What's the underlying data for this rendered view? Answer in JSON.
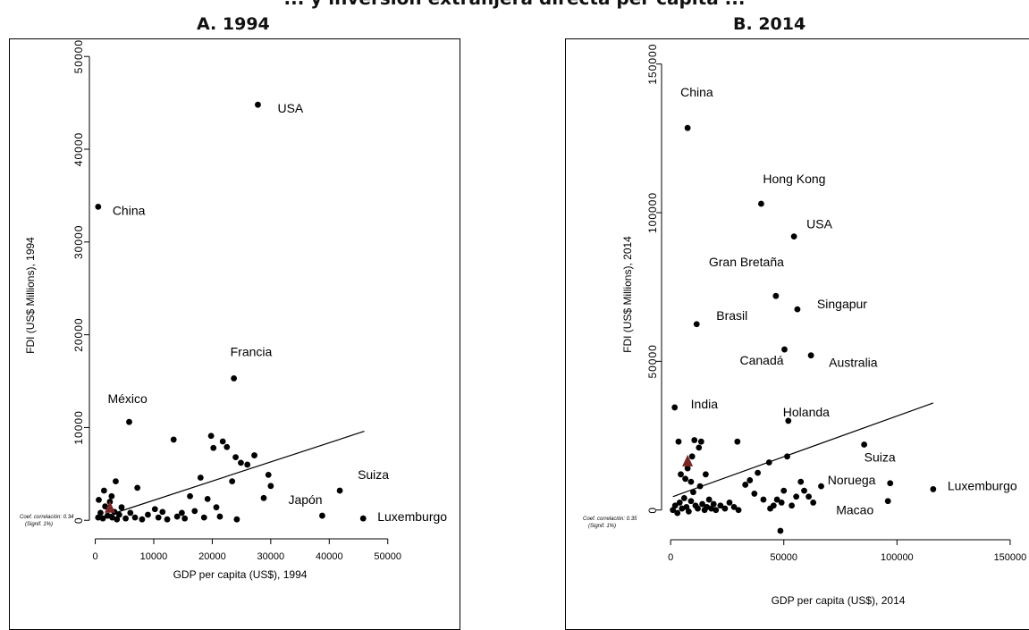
{
  "figure": {
    "title": "... y inversión extranjera directa per cápita ...",
    "panels": [
      "A. 1994",
      "B. 2014"
    ]
  },
  "chart_data": [
    {
      "type": "scatter",
      "title": "A. 1994",
      "xlabel": "GDP per capita (US$), 1994",
      "ylabel": "FDI (US$ Millions), 1994",
      "xlim": [
        -1000,
        50500
      ],
      "ylim": [
        -2000,
        50500
      ],
      "xticks": [
        0,
        10000,
        20000,
        30000,
        40000,
        50000
      ],
      "yticks": [
        0,
        10000,
        20000,
        30000,
        40000,
        50000
      ],
      "ytick_labels": [
        "0",
        "10000",
        "20000",
        "30000",
        "40000",
        "50000"
      ],
      "grid": false,
      "annotation": [
        "Coef. correlación: 0.34",
        "(Signif. 1%)"
      ],
      "fit_line": {
        "from": [
          1000,
          300
        ],
        "to": [
          46000,
          9600
        ]
      },
      "highlight": {
        "x": 2500,
        "y": 1400,
        "color": "#7a2626"
      },
      "labeled_points": [
        {
          "label": "USA",
          "x": 27800,
          "y": 44800
        },
        {
          "label": "China",
          "x": 500,
          "y": 33800
        },
        {
          "label": "Francia",
          "x": 23700,
          "y": 15300
        },
        {
          "label": "México",
          "x": 5800,
          "y": 10600
        },
        {
          "label": "Japón",
          "x": 38800,
          "y": 500
        },
        {
          "label": "Suiza",
          "x": 41800,
          "y": 3200
        },
        {
          "label": "Luxemburgo",
          "x": 45800,
          "y": 200
        }
      ],
      "points": [
        {
          "x": 500,
          "y": 300
        },
        {
          "x": 900,
          "y": 800
        },
        {
          "x": 1300,
          "y": 200
        },
        {
          "x": 1700,
          "y": 1500
        },
        {
          "x": 2100,
          "y": 500
        },
        {
          "x": 2500,
          "y": 2000
        },
        {
          "x": 2900,
          "y": 300
        },
        {
          "x": 3300,
          "y": 900
        },
        {
          "x": 3700,
          "y": 100
        },
        {
          "x": 4100,
          "y": 600
        },
        {
          "x": 600,
          "y": 2200
        },
        {
          "x": 1500,
          "y": 3200
        },
        {
          "x": 2800,
          "y": 2600
        },
        {
          "x": 3500,
          "y": 4200
        },
        {
          "x": 4500,
          "y": 1400
        },
        {
          "x": 5200,
          "y": 200
        },
        {
          "x": 6000,
          "y": 800
        },
        {
          "x": 6800,
          "y": 300
        },
        {
          "x": 7200,
          "y": 3500
        },
        {
          "x": 8000,
          "y": 100
        },
        {
          "x": 9000,
          "y": 600
        },
        {
          "x": 10200,
          "y": 1200
        },
        {
          "x": 10800,
          "y": 300
        },
        {
          "x": 11500,
          "y": 900
        },
        {
          "x": 12300,
          "y": 100
        },
        {
          "x": 13400,
          "y": 8700
        },
        {
          "x": 14000,
          "y": 400
        },
        {
          "x": 14800,
          "y": 800
        },
        {
          "x": 15300,
          "y": 200
        },
        {
          "x": 16200,
          "y": 2600
        },
        {
          "x": 17000,
          "y": 1000
        },
        {
          "x": 18000,
          "y": 4600
        },
        {
          "x": 18600,
          "y": 300
        },
        {
          "x": 19200,
          "y": 2300
        },
        {
          "x": 19800,
          "y": 9100
        },
        {
          "x": 20200,
          "y": 7800
        },
        {
          "x": 20700,
          "y": 1400
        },
        {
          "x": 21300,
          "y": 400
        },
        {
          "x": 21800,
          "y": 8500
        },
        {
          "x": 22500,
          "y": 7900
        },
        {
          "x": 23400,
          "y": 4200
        },
        {
          "x": 24000,
          "y": 6800
        },
        {
          "x": 24200,
          "y": 100
        },
        {
          "x": 24900,
          "y": 6200
        },
        {
          "x": 26000,
          "y": 6000
        },
        {
          "x": 27200,
          "y": 7000
        },
        {
          "x": 28800,
          "y": 2400
        },
        {
          "x": 29600,
          "y": 4900
        },
        {
          "x": 30000,
          "y": 3700
        }
      ]
    },
    {
      "type": "scatter",
      "title": "B. 2014",
      "xlabel": "GDP per capita (US$), 2014",
      "ylabel": "FDI (US$ Millions), 2014",
      "xlim": [
        -4000,
        152000
      ],
      "ylim": [
        -10000,
        155000
      ],
      "xticks": [
        0,
        50000,
        100000,
        150000
      ],
      "yticks": [
        0,
        50000,
        100000,
        150000
      ],
      "ytick_labels": [
        "0",
        "50000",
        "100000",
        "150000"
      ],
      "grid": false,
      "annotation": [
        "Coef. correlación: 0.35",
        "(Signif. 1%)"
      ],
      "fit_line": {
        "from": [
          1000,
          4500
        ],
        "to": [
          116000,
          36000
        ]
      },
      "highlight": {
        "x": 7500,
        "y": 16500,
        "color": "#7a2626"
      },
      "labeled_points": [
        {
          "label": "China",
          "x": 7500,
          "y": 128500
        },
        {
          "label": "Hong Kong",
          "x": 40000,
          "y": 103000
        },
        {
          "label": "USA",
          "x": 54500,
          "y": 92000
        },
        {
          "label": "Gran Bretaña",
          "x": 46500,
          "y": 72000
        },
        {
          "label": "Singapur",
          "x": 56000,
          "y": 67500
        },
        {
          "label": "Brasil",
          "x": 11500,
          "y": 62500
        },
        {
          "label": "Canadá",
          "x": 50300,
          "y": 54000
        },
        {
          "label": "Australia",
          "x": 62000,
          "y": 52000
        },
        {
          "label": "India",
          "x": 1800,
          "y": 34500
        },
        {
          "label": "Holanda",
          "x": 52000,
          "y": 30000
        },
        {
          "label": "Suiza",
          "x": 85500,
          "y": 22000
        },
        {
          "label": "Noruega",
          "x": 97000,
          "y": 9000
        },
        {
          "label": "Macao",
          "x": 96000,
          "y": 3000
        },
        {
          "label": "Luxemburgo",
          "x": 116000,
          "y": 7000
        }
      ],
      "points": [
        {
          "x": 1000,
          "y": 0
        },
        {
          "x": 2000,
          "y": 1500
        },
        {
          "x": 3000,
          "y": -1000
        },
        {
          "x": 4000,
          "y": 2500
        },
        {
          "x": 5000,
          "y": 500
        },
        {
          "x": 6000,
          "y": 4000
        },
        {
          "x": 7000,
          "y": 1000
        },
        {
          "x": 8000,
          "y": -500
        },
        {
          "x": 9000,
          "y": 3000
        },
        {
          "x": 10000,
          "y": 6000
        },
        {
          "x": 11000,
          "y": 1500
        },
        {
          "x": 12000,
          "y": 500
        },
        {
          "x": 13000,
          "y": 8000
        },
        {
          "x": 14000,
          "y": 2000
        },
        {
          "x": 15000,
          "y": 0
        },
        {
          "x": 16000,
          "y": 1000
        },
        {
          "x": 17000,
          "y": 3500
        },
        {
          "x": 18000,
          "y": 500
        },
        {
          "x": 19000,
          "y": 2000
        },
        {
          "x": 20000,
          "y": 0
        },
        {
          "x": 22000,
          "y": 1500
        },
        {
          "x": 24000,
          "y": 500
        },
        {
          "x": 26000,
          "y": 2500
        },
        {
          "x": 28000,
          "y": 1000
        },
        {
          "x": 30000,
          "y": 0
        },
        {
          "x": 3500,
          "y": 23000
        },
        {
          "x": 4500,
          "y": 12000
        },
        {
          "x": 6500,
          "y": 10500
        },
        {
          "x": 7500,
          "y": 14000
        },
        {
          "x": 9500,
          "y": 18000
        },
        {
          "x": 10500,
          "y": 23500
        },
        {
          "x": 12500,
          "y": 21000
        },
        {
          "x": 13500,
          "y": 23000
        },
        {
          "x": 9000,
          "y": 9500
        },
        {
          "x": 15500,
          "y": 12000
        },
        {
          "x": 29500,
          "y": 23000
        },
        {
          "x": 33000,
          "y": 8500
        },
        {
          "x": 35000,
          "y": 10000
        },
        {
          "x": 37000,
          "y": 5500
        },
        {
          "x": 38500,
          "y": 12500
        },
        {
          "x": 41000,
          "y": 3500
        },
        {
          "x": 43500,
          "y": 16000
        },
        {
          "x": 45500,
          "y": 1500
        },
        {
          "x": 47000,
          "y": 3500
        },
        {
          "x": 49000,
          "y": 2500
        },
        {
          "x": 50000,
          "y": 6500
        },
        {
          "x": 51500,
          "y": 18000
        },
        {
          "x": 53500,
          "y": 1500
        },
        {
          "x": 55500,
          "y": 4500
        },
        {
          "x": 57500,
          "y": 9500
        },
        {
          "x": 59000,
          "y": 6500
        },
        {
          "x": 61000,
          "y": 4500
        },
        {
          "x": 63000,
          "y": 2500
        },
        {
          "x": 66500,
          "y": 8000
        },
        {
          "x": 48500,
          "y": -7000
        },
        {
          "x": 44000,
          "y": 500
        }
      ]
    }
  ]
}
